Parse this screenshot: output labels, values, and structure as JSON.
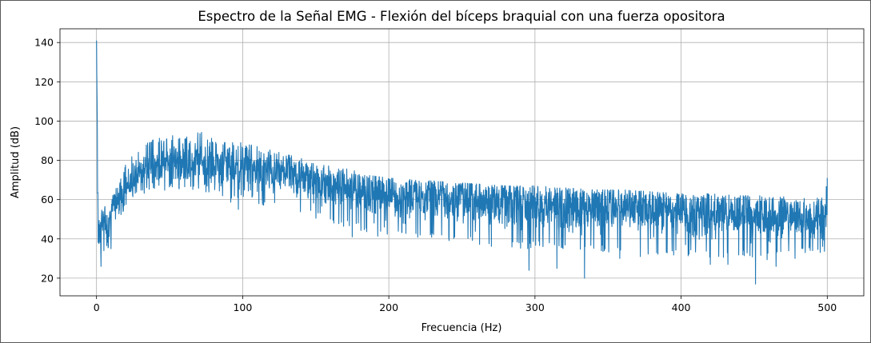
{
  "chart_data": {
    "type": "line",
    "title": "Espectro de la Señal EMG - Flexión del bíceps braquial con una fuerza opositora",
    "xlabel": "Frecuencia (Hz)",
    "ylabel": "Amplitud (dB)",
    "xlim": [
      -25,
      525
    ],
    "ylim": [
      11,
      147
    ],
    "xticks": [
      0,
      100,
      200,
      300,
      400,
      500
    ],
    "yticks": [
      20,
      40,
      60,
      80,
      100,
      120,
      140
    ],
    "grid": true,
    "line_color": "#1f77b4",
    "series": [
      {
        "name": "",
        "x": [
          0,
          1,
          2,
          3,
          5,
          8,
          10,
          15,
          20,
          25,
          30,
          40,
          50,
          60,
          70,
          80,
          90,
          100,
          110,
          120,
          130,
          140,
          150,
          160,
          170,
          180,
          190,
          200,
          220,
          240,
          260,
          280,
          300,
          320,
          340,
          360,
          380,
          400,
          420,
          440,
          460,
          480,
          498,
          500
        ],
        "upper": [
          141,
          58,
          57,
          56,
          57,
          55,
          60,
          70,
          78,
          84,
          88,
          91,
          93,
          93,
          95,
          91,
          89,
          89,
          87,
          85,
          83,
          81,
          78,
          77,
          76,
          74,
          72,
          71,
          70,
          69,
          68,
          67,
          67,
          66,
          65,
          65,
          64,
          63,
          63,
          62,
          62,
          61,
          61,
          71
        ],
        "mean": [
          141,
          46,
          45,
          46,
          47,
          48,
          53,
          60,
          66,
          70,
          74,
          77,
          79,
          79,
          80,
          79,
          78,
          77,
          75,
          74,
          73,
          71,
          69,
          67,
          66,
          64,
          63,
          62,
          61,
          60,
          59,
          58,
          57,
          56,
          56,
          55,
          54,
          53,
          52,
          52,
          51,
          51,
          50,
          50
        ],
        "lower": [
          40,
          37,
          30,
          28,
          33,
          35,
          43,
          50,
          55,
          60,
          62,
          64,
          65,
          65,
          64,
          63,
          58,
          59,
          58,
          55,
          55,
          52,
          50,
          48,
          46,
          44,
          40,
          42,
          40,
          38,
          36,
          35,
          35,
          34,
          33,
          33,
          32,
          31,
          30,
          31,
          29,
          32,
          33,
          35
        ]
      }
    ],
    "dips": [
      [
        3,
        26
      ],
      [
        10,
        35
      ],
      [
        97,
        55
      ],
      [
        175,
        41
      ],
      [
        197,
        46
      ],
      [
        256,
        41
      ],
      [
        296,
        24
      ],
      [
        315,
        25
      ],
      [
        334,
        20
      ],
      [
        358,
        30
      ],
      [
        372,
        31
      ],
      [
        420,
        27
      ],
      [
        432,
        27
      ],
      [
        451,
        17
      ],
      [
        465,
        26
      ],
      [
        478,
        30
      ],
      [
        485,
        33
      ],
      [
        490,
        34
      ]
    ]
  }
}
